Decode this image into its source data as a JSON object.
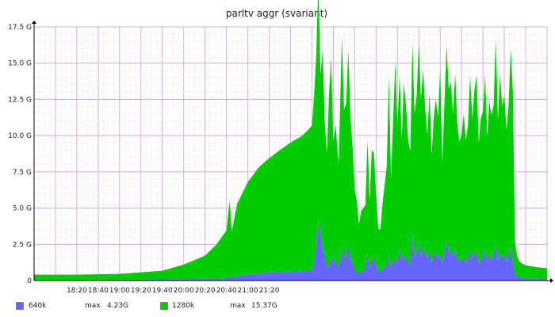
{
  "chart_data": {
    "type": "area",
    "stacked": true,
    "title": "parltv aggr (svariant)",
    "x_ticks": [
      "18:20",
      "18:40",
      "19:00",
      "19:20",
      "19:40",
      "20:00",
      "20:20",
      "20:40",
      "21:00",
      "21:20"
    ],
    "y_ticks": [
      "0",
      "2.5 G",
      "5.0 G",
      "7.5 G",
      "10.0 G",
      "12.5 G",
      "15.0 G",
      "17.5 G"
    ],
    "ylim": [
      0,
      17.5
    ],
    "ylabel_unit": "G",
    "grid": true,
    "legend_position": "bottom-left",
    "series": [
      {
        "name": "640k",
        "max_label": "max",
        "max_value": "4.23G",
        "color": "#6666ff",
        "points": [
          [
            0,
            0.05
          ],
          [
            40,
            0.05
          ],
          [
            80,
            0.06
          ],
          [
            100,
            0.07
          ],
          [
            120,
            0.08
          ],
          [
            140,
            0.1
          ],
          [
            160,
            0.12
          ],
          [
            170,
            0.14
          ],
          [
            180,
            0.16
          ],
          [
            183,
            0.35
          ],
          [
            185,
            0.2
          ],
          [
            190,
            0.3
          ],
          [
            200,
            0.4
          ],
          [
            210,
            0.5
          ],
          [
            220,
            0.55
          ],
          [
            230,
            0.6
          ],
          [
            240,
            0.62
          ],
          [
            250,
            0.65
          ],
          [
            255,
            0.68
          ],
          [
            260,
            0.7
          ],
          [
            262,
            1.2
          ],
          [
            264,
            2.2
          ],
          [
            266,
            4.2
          ],
          [
            268,
            3.2
          ],
          [
            270,
            2.4
          ],
          [
            272,
            1.6
          ],
          [
            274,
            1.0
          ],
          [
            276,
            0.9
          ],
          [
            278,
            1.4
          ],
          [
            280,
            1.6
          ],
          [
            282,
            1.3
          ],
          [
            285,
            0.9
          ],
          [
            288,
            2.3
          ],
          [
            290,
            1.5
          ],
          [
            292,
            1.6
          ],
          [
            294,
            2.4
          ],
          [
            296,
            1.7
          ],
          [
            298,
            1.2
          ],
          [
            300,
            0.8
          ],
          [
            302,
            0.6
          ],
          [
            304,
            0.5
          ],
          [
            306,
            0.6
          ],
          [
            310,
            0.8
          ],
          [
            312,
            1.9
          ],
          [
            314,
            0.8
          ],
          [
            316,
            1.4
          ],
          [
            318,
            1.6
          ],
          [
            320,
            1.1
          ],
          [
            322,
            0.7
          ],
          [
            324,
            0.6
          ],
          [
            326,
            0.8
          ],
          [
            330,
            1.0
          ],
          [
            332,
            1.7
          ],
          [
            334,
            0.9
          ],
          [
            336,
            1.2
          ],
          [
            338,
            1.6
          ],
          [
            340,
            1.3
          ],
          [
            342,
            2.1
          ],
          [
            344,
            1.4
          ],
          [
            346,
            1.8
          ],
          [
            348,
            1.6
          ],
          [
            350,
            1.3
          ],
          [
            352,
            1.0
          ],
          [
            354,
            3.2
          ],
          [
            356,
            1.6
          ],
          [
            358,
            2.0
          ],
          [
            360,
            2.6
          ],
          [
            362,
            1.7
          ],
          [
            364,
            2.2
          ],
          [
            366,
            1.9
          ],
          [
            368,
            1.5
          ],
          [
            370,
            2.1
          ],
          [
            372,
            1.3
          ],
          [
            374,
            1.7
          ],
          [
            376,
            1.9
          ],
          [
            378,
            1.6
          ],
          [
            380,
            1.9
          ],
          [
            382,
            1.2
          ],
          [
            384,
            1.7
          ],
          [
            386,
            2.8
          ],
          [
            388,
            1.9
          ],
          [
            390,
            2.0
          ],
          [
            392,
            1.8
          ],
          [
            394,
            2.2
          ],
          [
            396,
            1.5
          ],
          [
            398,
            1.3
          ],
          [
            400,
            1.5
          ],
          [
            402,
            1.6
          ],
          [
            404,
            1.2
          ],
          [
            406,
            1.5
          ],
          [
            408,
            2.1
          ],
          [
            410,
            1.5
          ],
          [
            412,
            1.8
          ],
          [
            414,
            2.0
          ],
          [
            416,
            1.2
          ],
          [
            418,
            1.4
          ],
          [
            420,
            1.6
          ],
          [
            422,
            2.1
          ],
          [
            424,
            1.3
          ],
          [
            426,
            1.8
          ],
          [
            428,
            1.5
          ],
          [
            430,
            1.7
          ],
          [
            432,
            2.5
          ],
          [
            434,
            1.4
          ],
          [
            436,
            1.9
          ],
          [
            438,
            1.6
          ],
          [
            440,
            1.8
          ],
          [
            442,
            1.3
          ],
          [
            444,
            1.6
          ],
          [
            446,
            2.4
          ],
          [
            448,
            1.3
          ],
          [
            450,
            0.5
          ],
          [
            452,
            0.3
          ],
          [
            454,
            0.25
          ],
          [
            456,
            0.2
          ],
          [
            460,
            0.15
          ],
          [
            470,
            0.12
          ],
          [
            480,
            0.1
          ]
        ]
      },
      {
        "name": "1280k",
        "max_label": "max",
        "max_value": "15.37G",
        "color": "#00cc00",
        "points": [
          [
            0,
            0.35
          ],
          [
            40,
            0.35
          ],
          [
            80,
            0.4
          ],
          [
            100,
            0.5
          ],
          [
            120,
            0.6
          ],
          [
            140,
            1.0
          ],
          [
            160,
            1.6
          ],
          [
            170,
            2.3
          ],
          [
            180,
            3.3
          ],
          [
            183,
            5.2
          ],
          [
            185,
            3.2
          ],
          [
            190,
            5.0
          ],
          [
            200,
            6.4
          ],
          [
            210,
            7.3
          ],
          [
            220,
            7.9
          ],
          [
            230,
            8.4
          ],
          [
            240,
            8.9
          ],
          [
            250,
            9.3
          ],
          [
            255,
            9.6
          ],
          [
            260,
            10.0
          ],
          [
            262,
            11.6
          ],
          [
            264,
            13.3
          ],
          [
            266,
            16.5
          ],
          [
            268,
            11.0
          ],
          [
            270,
            13.5
          ],
          [
            272,
            9.3
          ],
          [
            274,
            7.8
          ],
          [
            276,
            12.0
          ],
          [
            278,
            14.0
          ],
          [
            280,
            8.0
          ],
          [
            282,
            9.5
          ],
          [
            285,
            7.2
          ],
          [
            288,
            14.5
          ],
          [
            290,
            10.3
          ],
          [
            292,
            10.6
          ],
          [
            294,
            13.5
          ],
          [
            296,
            9.7
          ],
          [
            298,
            8.0
          ],
          [
            300,
            5.5
          ],
          [
            302,
            4.9
          ],
          [
            304,
            3.4
          ],
          [
            306,
            4.2
          ],
          [
            310,
            4.4
          ],
          [
            312,
            7.8
          ],
          [
            314,
            4.7
          ],
          [
            316,
            7.6
          ],
          [
            318,
            7.2
          ],
          [
            320,
            4.8
          ],
          [
            322,
            2.9
          ],
          [
            324,
            2.9
          ],
          [
            326,
            4.5
          ],
          [
            330,
            6.9
          ],
          [
            332,
            12.4
          ],
          [
            334,
            6.1
          ],
          [
            336,
            10.0
          ],
          [
            338,
            13.5
          ],
          [
            340,
            9.4
          ],
          [
            342,
            12.1
          ],
          [
            344,
            8.4
          ],
          [
            346,
            11.8
          ],
          [
            348,
            10.5
          ],
          [
            350,
            8.4
          ],
          [
            352,
            7.9
          ],
          [
            354,
            13.2
          ],
          [
            356,
            9.9
          ],
          [
            358,
            10.8
          ],
          [
            360,
            13.8
          ],
          [
            362,
            10.8
          ],
          [
            364,
            12.4
          ],
          [
            366,
            9.9
          ],
          [
            368,
            8.6
          ],
          [
            370,
            10.8
          ],
          [
            372,
            7.4
          ],
          [
            374,
            9.6
          ],
          [
            376,
            10.6
          ],
          [
            378,
            9.7
          ],
          [
            380,
            12.7
          ],
          [
            382,
            7.0
          ],
          [
            384,
            10.6
          ],
          [
            386,
            13.4
          ],
          [
            388,
            11.3
          ],
          [
            390,
            11.7
          ],
          [
            392,
            9.7
          ],
          [
            394,
            12.1
          ],
          [
            396,
            9.3
          ],
          [
            398,
            8.3
          ],
          [
            400,
            8.6
          ],
          [
            402,
            9.9
          ],
          [
            404,
            8.5
          ],
          [
            406,
            9.2
          ],
          [
            408,
            12.1
          ],
          [
            410,
            9.6
          ],
          [
            412,
            11.3
          ],
          [
            414,
            12.2
          ],
          [
            416,
            8.3
          ],
          [
            418,
            9.8
          ],
          [
            420,
            10.1
          ],
          [
            422,
            12.1
          ],
          [
            424,
            8.6
          ],
          [
            426,
            10.6
          ],
          [
            428,
            9.9
          ],
          [
            430,
            10.4
          ],
          [
            432,
            14.2
          ],
          [
            434,
            9.7
          ],
          [
            436,
            12.3
          ],
          [
            438,
            10.4
          ],
          [
            440,
            11.0
          ],
          [
            442,
            9.1
          ],
          [
            444,
            10.5
          ],
          [
            446,
            13.6
          ],
          [
            448,
            11.7
          ],
          [
            450,
            2.2
          ],
          [
            452,
            1.4
          ],
          [
            454,
            1.1
          ],
          [
            456,
            1.0
          ],
          [
            460,
            0.9
          ],
          [
            470,
            0.8
          ],
          [
            480,
            0.75
          ]
        ]
      }
    ]
  }
}
